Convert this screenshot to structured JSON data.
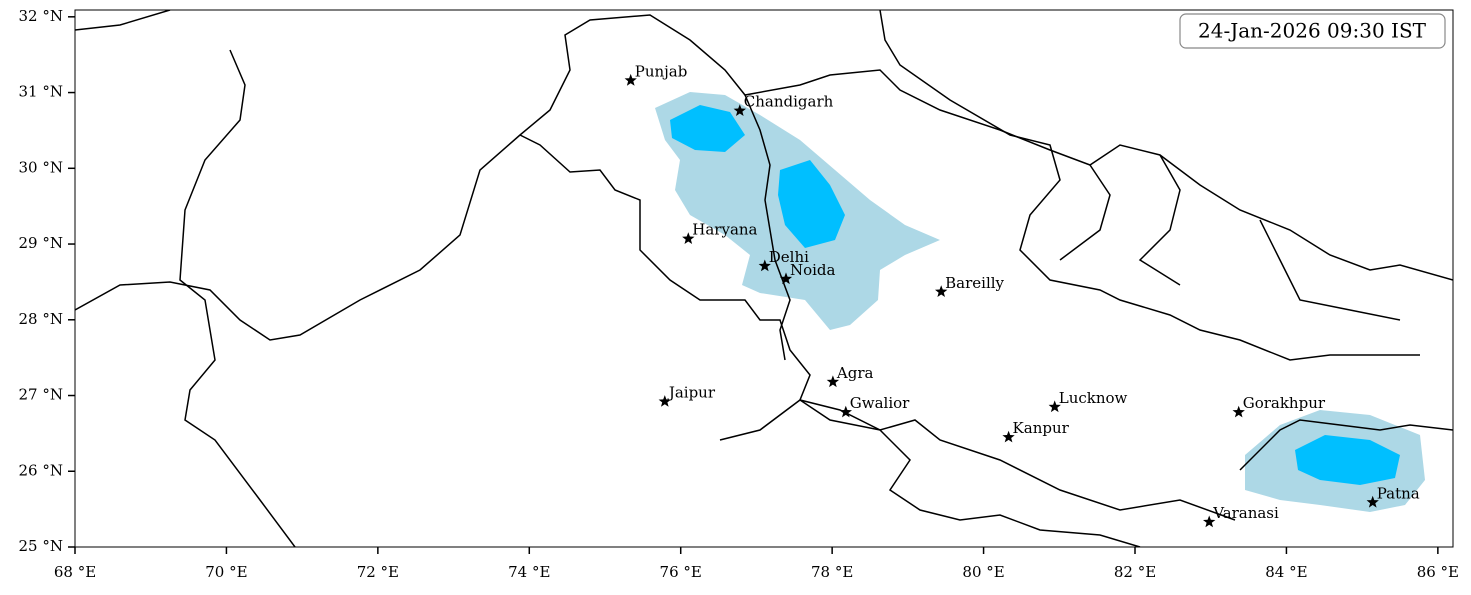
{
  "map": {
    "title": "24-Jan-2026 09:30 IST",
    "xlim": [
      68,
      86.2
    ],
    "ylim": [
      25,
      32.09
    ],
    "xticks": [
      {
        "value": 68,
        "label": "68 °E"
      },
      {
        "value": 70,
        "label": "70 °E"
      },
      {
        "value": 72,
        "label": "72 °E"
      },
      {
        "value": 74,
        "label": "74 °E"
      },
      {
        "value": 76,
        "label": "76 °E"
      },
      {
        "value": 78,
        "label": "78 °E"
      },
      {
        "value": 80,
        "label": "80 °E"
      },
      {
        "value": 82,
        "label": "82 °E"
      },
      {
        "value": 84,
        "label": "84 °E"
      },
      {
        "value": 86,
        "label": "86 °E"
      }
    ],
    "yticks": [
      {
        "value": 25,
        "label": "25 °N"
      },
      {
        "value": 26,
        "label": "26 °N"
      },
      {
        "value": 27,
        "label": "27 °N"
      },
      {
        "value": 28,
        "label": "28 °N"
      },
      {
        "value": 29,
        "label": "29 °N"
      },
      {
        "value": 30,
        "label": "30 °N"
      },
      {
        "value": 31,
        "label": "31 °N"
      },
      {
        "value": 32,
        "label": "32 °N"
      }
    ],
    "cities": [
      {
        "name": "Punjab",
        "lon": 75.34,
        "lat": 31.16
      },
      {
        "name": "Chandigarh",
        "lon": 76.78,
        "lat": 30.76
      },
      {
        "name": "Haryana",
        "lon": 76.1,
        "lat": 29.07
      },
      {
        "name": "Delhi",
        "lon": 77.11,
        "lat": 28.71
      },
      {
        "name": "Noida",
        "lon": 77.39,
        "lat": 28.54
      },
      {
        "name": "Bareilly",
        "lon": 79.44,
        "lat": 28.37
      },
      {
        "name": "Agra",
        "lon": 78.01,
        "lat": 27.18
      },
      {
        "name": "Jaipur",
        "lon": 75.79,
        "lat": 26.92
      },
      {
        "name": "Gwalior",
        "lon": 78.18,
        "lat": 26.78
      },
      {
        "name": "Lucknow",
        "lon": 80.94,
        "lat": 26.85
      },
      {
        "name": "Kanpur",
        "lon": 80.33,
        "lat": 26.45
      },
      {
        "name": "Gorakhpur",
        "lon": 83.37,
        "lat": 26.78
      },
      {
        "name": "Varanasi",
        "lon": 82.98,
        "lat": 25.33
      },
      {
        "name": "Patna",
        "lon": 85.14,
        "lat": 25.59
      }
    ]
  }
}
